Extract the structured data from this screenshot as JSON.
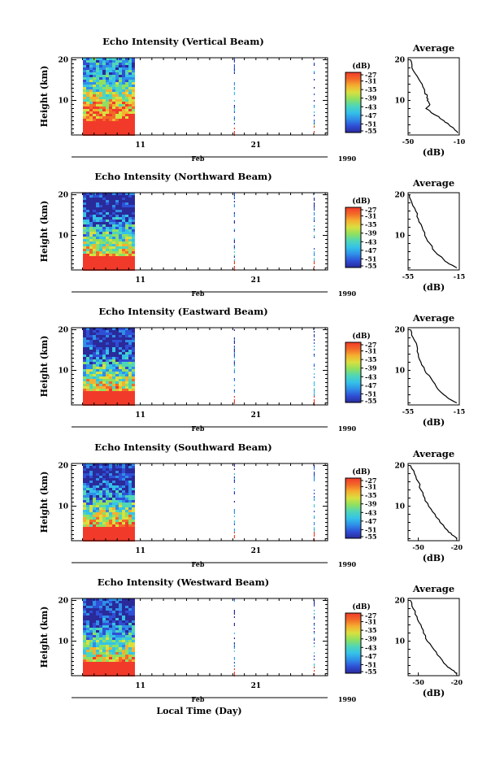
{
  "figure": {
    "xlabel": "Local Time (Day)",
    "month_label": "Feb",
    "year_label": "1990",
    "ylabel": "Height (km)",
    "colorbar_unit": "(dB)",
    "average_title": "Average",
    "average_xlabel": "(dB)"
  },
  "colors": {
    "colormap": [
      "#2a2a9a",
      "#2f4fd6",
      "#2f8fe8",
      "#35c2e8",
      "#4fd6b8",
      "#8fe060",
      "#d8e040",
      "#f5b030",
      "#f26a28",
      "#f23a2a"
    ],
    "strong_echo": "#f23a2a",
    "line": "#000000"
  },
  "chart_data": [
    {
      "type": "heatmap",
      "title": "Echo Intensity (Vertical Beam)",
      "x_axis": {
        "unit": "day",
        "ticks": [
          11,
          21
        ],
        "month": "Feb",
        "year": "1990",
        "data_range": [
          6.0,
          10.4
        ]
      },
      "y_axis": {
        "label": "Height (km)",
        "ticks": [
          10,
          20
        ],
        "range": [
          1.5,
          20.5
        ]
      },
      "colorbar": {
        "label": "(dB)",
        "ticks": [
          -27,
          -31,
          -35,
          -39,
          -43,
          -47,
          -51,
          -55
        ],
        "range": [
          -55,
          -27
        ]
      },
      "average_profile": {
        "title": "Average",
        "xlabel": "(dB)",
        "xticks": [
          -50,
          -10
        ],
        "xlim": [
          -50,
          -10
        ],
        "yticks": [
          10,
          20
        ],
        "ylim": [
          1.5,
          20.5
        ],
        "points": [
          {
            "height": 20,
            "db": -48
          },
          {
            "height": 18,
            "db": -47
          },
          {
            "height": 16,
            "db": -43
          },
          {
            "height": 14,
            "db": -39
          },
          {
            "height": 12,
            "db": -37
          },
          {
            "height": 11,
            "db": -35
          },
          {
            "height": 10,
            "db": -35
          },
          {
            "height": 9,
            "db": -33
          },
          {
            "height": 8,
            "db": -36
          },
          {
            "height": 7,
            "db": -32
          },
          {
            "height": 6,
            "db": -26
          },
          {
            "height": 5,
            "db": -22
          },
          {
            "height": 4,
            "db": -18
          },
          {
            "height": 3,
            "db": -14
          },
          {
            "height": 2,
            "db": -11
          }
        ]
      }
    },
    {
      "type": "heatmap",
      "title": "Echo Intensity (Northward Beam)",
      "x_axis": {
        "unit": "day",
        "ticks": [
          11,
          21
        ],
        "month": "Feb",
        "year": "1990",
        "data_range": [
          6.0,
          10.4
        ]
      },
      "y_axis": {
        "label": "Height (km)",
        "ticks": [
          10,
          20
        ],
        "range": [
          1.5,
          20.5
        ]
      },
      "colorbar": {
        "label": "(dB)",
        "ticks": [
          -27,
          -31,
          -35,
          -39,
          -43,
          -47,
          -51,
          -55
        ],
        "range": [
          -55,
          -27
        ]
      },
      "average_profile": {
        "title": "Average",
        "xlabel": "(dB)",
        "xticks": [
          -55,
          -15
        ],
        "xlim": [
          -55,
          -15
        ],
        "yticks": [
          10,
          20
        ],
        "ylim": [
          1.5,
          20.5
        ],
        "points": [
          {
            "height": 20,
            "db": -54
          },
          {
            "height": 18,
            "db": -52
          },
          {
            "height": 16,
            "db": -49
          },
          {
            "height": 14,
            "db": -47
          },
          {
            "height": 12,
            "db": -44
          },
          {
            "height": 10,
            "db": -42
          },
          {
            "height": 8,
            "db": -38
          },
          {
            "height": 6,
            "db": -34
          },
          {
            "height": 4,
            "db": -27
          },
          {
            "height": 3,
            "db": -23
          },
          {
            "height": 2,
            "db": -17
          }
        ]
      }
    },
    {
      "type": "heatmap",
      "title": "Echo Intensity (Eastward Beam)",
      "x_axis": {
        "unit": "day",
        "ticks": [
          11,
          21
        ],
        "month": "Feb",
        "year": "1990",
        "data_range": [
          6.0,
          10.4
        ]
      },
      "y_axis": {
        "label": "Height (km)",
        "ticks": [
          10,
          20
        ],
        "range": [
          1.5,
          20.5
        ]
      },
      "colorbar": {
        "label": "(dB)",
        "ticks": [
          -27,
          -31,
          -35,
          -39,
          -43,
          -47,
          -51,
          -55
        ],
        "range": [
          -55,
          -27
        ]
      },
      "average_profile": {
        "title": "Average",
        "xlabel": "(dB)",
        "xticks": [
          -55,
          -15
        ],
        "xlim": [
          -55,
          -15
        ],
        "yticks": [
          10,
          20
        ],
        "ylim": [
          1.5,
          20.5
        ],
        "points": [
          {
            "height": 20,
            "db": -53
          },
          {
            "height": 18,
            "db": -51
          },
          {
            "height": 16,
            "db": -48
          },
          {
            "height": 14,
            "db": -47
          },
          {
            "height": 12,
            "db": -45
          },
          {
            "height": 10,
            "db": -42
          },
          {
            "height": 8,
            "db": -37
          },
          {
            "height": 6,
            "db": -33
          },
          {
            "height": 4,
            "db": -27
          },
          {
            "height": 3,
            "db": -23
          },
          {
            "height": 2,
            "db": -17
          }
        ]
      }
    },
    {
      "type": "heatmap",
      "title": "Echo Intensity (Southward Beam)",
      "x_axis": {
        "unit": "day",
        "ticks": [
          11,
          21
        ],
        "month": "Feb",
        "year": "1990",
        "data_range": [
          6.0,
          10.4
        ]
      },
      "y_axis": {
        "label": "Height (km)",
        "ticks": [
          10,
          20
        ],
        "range": [
          1.5,
          20.5
        ]
      },
      "colorbar": {
        "label": "(dB)",
        "ticks": [
          -27,
          -31,
          -35,
          -39,
          -43,
          -47,
          -51,
          -55
        ],
        "range": [
          -55,
          -27
        ]
      },
      "average_profile": {
        "title": "Average",
        "xlabel": "(dB)",
        "xticks": [
          -50,
          -20
        ],
        "xlim": [
          -58,
          -18
        ],
        "yticks": [
          10,
          20
        ],
        "ylim": [
          1.5,
          20.5
        ],
        "points": [
          {
            "height": 20,
            "db": -56
          },
          {
            "height": 18,
            "db": -53
          },
          {
            "height": 16,
            "db": -50
          },
          {
            "height": 14,
            "db": -48
          },
          {
            "height": 12,
            "db": -45
          },
          {
            "height": 10,
            "db": -42
          },
          {
            "height": 8,
            "db": -37
          },
          {
            "height": 6,
            "db": -33
          },
          {
            "height": 4,
            "db": -27
          },
          {
            "height": 3,
            "db": -24
          },
          {
            "height": 2,
            "db": -20
          }
        ]
      }
    },
    {
      "type": "heatmap",
      "title": "Echo Intensity (Westward Beam)",
      "x_axis": {
        "unit": "day",
        "ticks": [
          11,
          21
        ],
        "month": "Feb",
        "year": "1990",
        "data_range": [
          6.0,
          10.4
        ]
      },
      "y_axis": {
        "label": "Height (km)",
        "ticks": [
          10,
          20
        ],
        "range": [
          1.5,
          20.5
        ]
      },
      "colorbar": {
        "label": "(dB)",
        "ticks": [
          -27,
          -31,
          -35,
          -39,
          -43,
          -47,
          -51,
          -55
        ],
        "range": [
          -55,
          -27
        ]
      },
      "average_profile": {
        "title": "Average",
        "xlabel": "(dB)",
        "xticks": [
          -50,
          -20
        ],
        "xlim": [
          -58,
          -18
        ],
        "yticks": [
          10,
          20
        ],
        "ylim": [
          1.5,
          20.5
        ],
        "points": [
          {
            "height": 20,
            "db": -56
          },
          {
            "height": 18,
            "db": -54
          },
          {
            "height": 16,
            "db": -51
          },
          {
            "height": 14,
            "db": -48
          },
          {
            "height": 12,
            "db": -46
          },
          {
            "height": 10,
            "db": -43
          },
          {
            "height": 8,
            "db": -38
          },
          {
            "height": 6,
            "db": -33
          },
          {
            "height": 4,
            "db": -28
          },
          {
            "height": 3,
            "db": -24
          },
          {
            "height": 2,
            "db": -20
          }
        ]
      }
    }
  ]
}
